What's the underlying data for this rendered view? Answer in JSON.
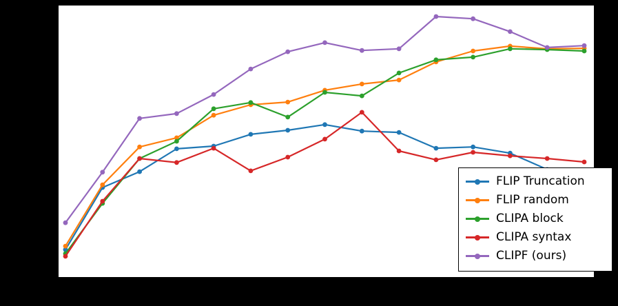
{
  "figure": {
    "background_color": "#000000",
    "plot_background_color": "#ffffff",
    "legend_position": "lower right"
  },
  "chart_data": {
    "type": "line",
    "x": [
      1,
      2,
      3,
      4,
      5,
      6,
      7,
      8,
      9,
      10,
      11,
      12,
      13,
      14,
      15
    ],
    "xlabel": "",
    "ylabel": "",
    "title": "",
    "ylim": [
      0,
      100
    ],
    "grid": false,
    "legend_position": "lower right",
    "series": [
      {
        "name": "FLIP Truncation",
        "color": "#1f77b4",
        "values": [
          9.7,
          32.8,
          38.7,
          47.2,
          48.2,
          52.6,
          54.1,
          56.2,
          53.8,
          53.3,
          47.4,
          47.9,
          45.6,
          39.5,
          35.4
        ]
      },
      {
        "name": "FLIP random",
        "color": "#ff7f0e",
        "values": [
          11.0,
          33.8,
          47.9,
          51.3,
          59.7,
          63.6,
          64.6,
          69.0,
          71.3,
          72.8,
          79.5,
          83.6,
          85.4,
          84.4,
          84.6
        ]
      },
      {
        "name": "CLIPA block",
        "color": "#2ca02c",
        "values": [
          8.2,
          26.9,
          43.6,
          50.0,
          62.1,
          64.4,
          59.0,
          68.2,
          66.9,
          75.4,
          80.3,
          81.3,
          84.4,
          84.1,
          83.6
        ]
      },
      {
        "name": "CLIPA syntax",
        "color": "#d62728",
        "values": [
          7.2,
          27.7,
          43.6,
          42.1,
          47.4,
          39.0,
          44.1,
          50.8,
          60.8,
          46.4,
          43.1,
          45.9,
          44.6,
          43.6,
          42.3
        ]
      },
      {
        "name": "CLIPF (ours)",
        "color": "#9467bd",
        "values": [
          19.7,
          38.5,
          58.5,
          60.3,
          67.4,
          76.9,
          83.3,
          86.7,
          83.8,
          84.4,
          96.4,
          95.6,
          90.8,
          84.9,
          85.6
        ]
      }
    ]
  },
  "legend": {
    "items": [
      {
        "label": "FLIP Truncation",
        "color": "#1f77b4"
      },
      {
        "label": "FLIP random",
        "color": "#ff7f0e"
      },
      {
        "label": "CLIPA block",
        "color": "#2ca02c"
      },
      {
        "label": "CLIPA syntax",
        "color": "#d62728"
      },
      {
        "label": "CLIPF (ours)",
        "color": "#9467bd"
      }
    ]
  }
}
